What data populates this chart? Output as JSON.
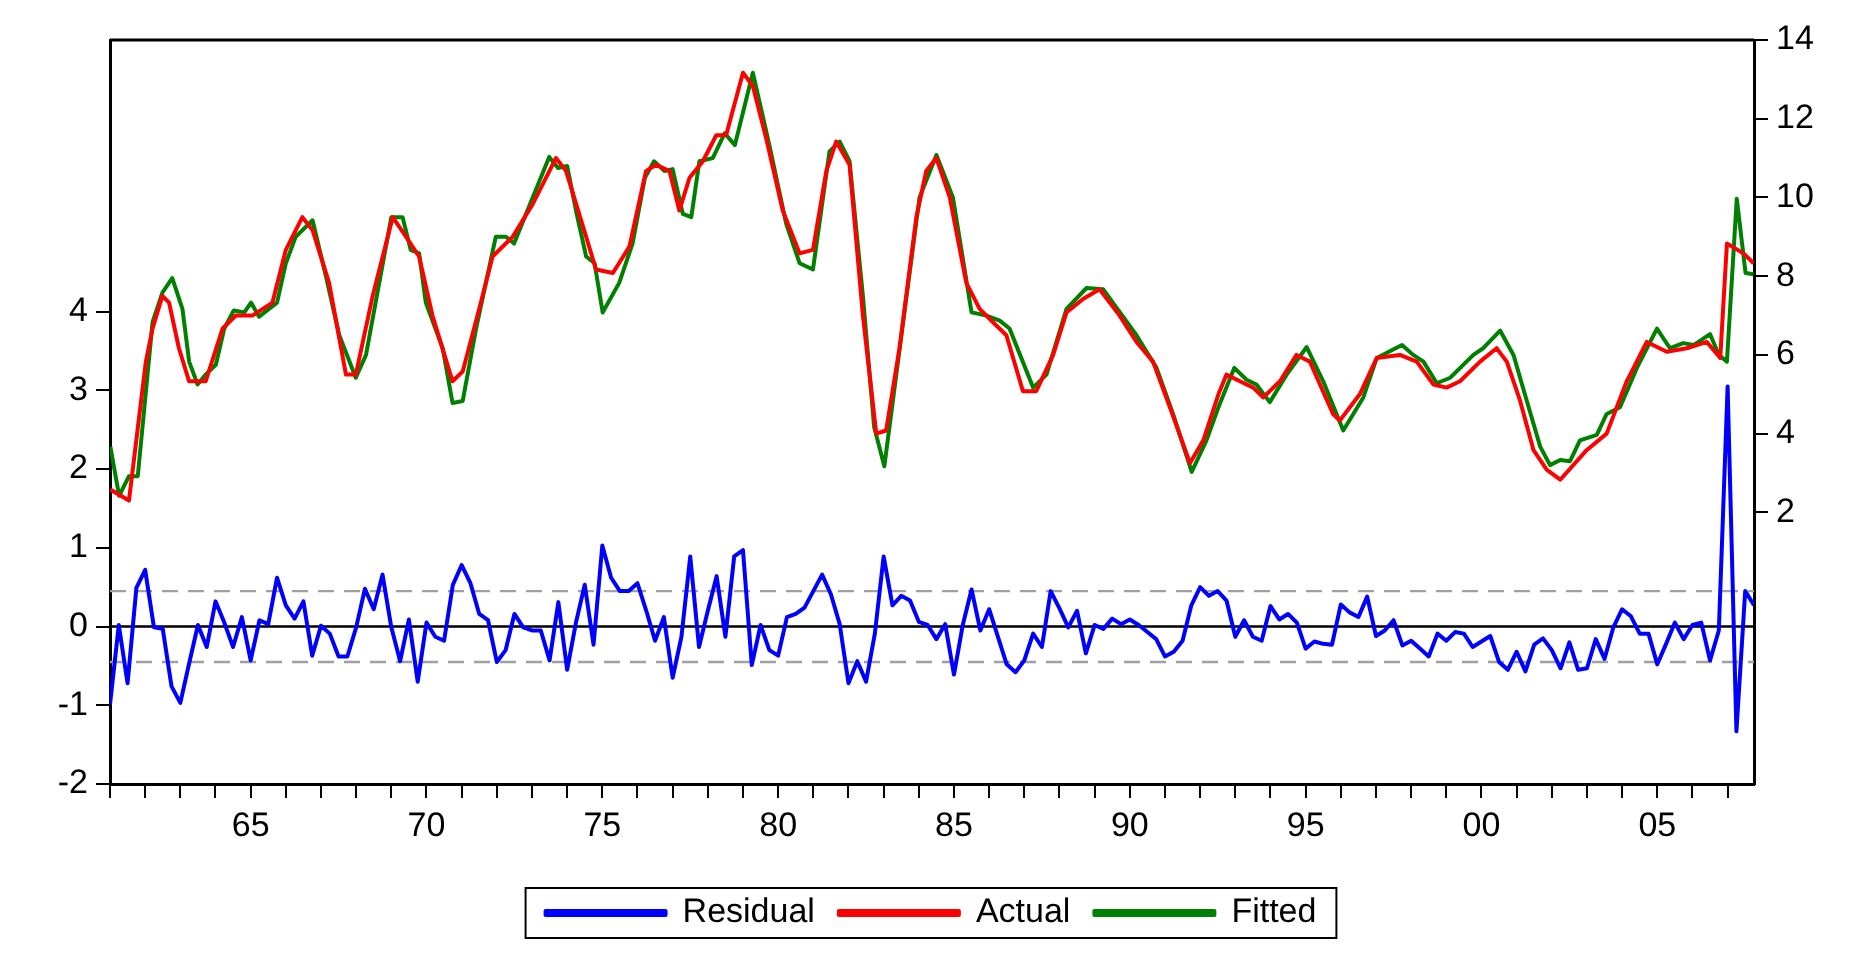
{
  "chart_data": {
    "type": "line",
    "x": [
      1961,
      1961.25,
      1961.5,
      1961.75,
      1962,
      1962.25,
      1962.5,
      1962.75,
      1963,
      1963.25,
      1963.5,
      1963.75,
      1964,
      1964.25,
      1964.5,
      1964.75,
      1965,
      1965.25,
      1965.5,
      1965.75,
      1966,
      1966.25,
      1966.5,
      1966.75,
      1967,
      1967.25,
      1967.5,
      1967.75,
      1968,
      1968.25,
      1968.5,
      1968.75,
      1969,
      1969.25,
      1969.5,
      1969.75,
      1970,
      1970.25,
      1970.5,
      1970.75,
      1971,
      1971.25,
      1971.5,
      1971.75,
      1972,
      1972.25,
      1972.5,
      1972.75,
      1973,
      1973.25,
      1973.5,
      1973.75,
      1974,
      1974.25,
      1974.5,
      1974.75,
      1975,
      1975.25,
      1975.5,
      1975.75,
      1976,
      1976.25,
      1976.5,
      1976.75,
      1977,
      1977.25,
      1977.5,
      1977.75,
      1978,
      1978.25,
      1978.5,
      1978.75,
      1979,
      1979.25,
      1979.5,
      1979.75,
      1980,
      1980.25,
      1980.5,
      1980.75,
      1981,
      1981.25,
      1981.5,
      1981.75,
      1982,
      1982.25,
      1982.5,
      1982.75,
      1983,
      1983.25,
      1983.5,
      1983.75,
      1984,
      1984.25,
      1984.5,
      1984.75,
      1985,
      1985.25,
      1985.5,
      1985.75,
      1986,
      1986.25,
      1986.5,
      1986.75,
      1987,
      1987.25,
      1987.5,
      1987.75,
      1988,
      1988.25,
      1988.5,
      1988.75,
      1989,
      1989.25,
      1989.5,
      1989.75,
      1990,
      1990.25,
      1990.5,
      1990.75,
      1991,
      1991.25,
      1991.5,
      1991.75,
      1992,
      1992.25,
      1992.5,
      1992.75,
      1993,
      1993.25,
      1993.5,
      1993.75,
      1994,
      1994.25,
      1994.5,
      1994.75,
      1995,
      1995.25,
      1995.5,
      1995.75,
      1996,
      1996.25,
      1996.5,
      1996.75,
      1997,
      1997.25,
      1997.5,
      1997.75,
      1998,
      1998.25,
      1998.5,
      1998.75,
      1999,
      1999.25,
      1999.5,
      1999.75,
      2000,
      2000.25,
      2000.5,
      2000.75,
      2001,
      2001.25,
      2001.5,
      2001.75,
      2002,
      2002.25,
      2002.5,
      2002.75,
      2003,
      2003.25,
      2003.5,
      2003.75,
      2004,
      2004.25,
      2004.5,
      2004.75,
      2005,
      2005.25,
      2005.5,
      2005.75,
      2006,
      2006.25,
      2006.5,
      2006.75,
      2007,
      2007.25,
      2007.5,
      2007.75
    ],
    "series": [
      {
        "name": "Residual",
        "color": "#0000ff",
        "values": [
          -0.99,
          0.02,
          -0.72,
          0.49,
          0.72,
          -0.01,
          -0.03,
          -0.76,
          -0.97,
          -0.47,
          0.02,
          -0.26,
          0.32,
          0.05,
          -0.26,
          0.12,
          -0.43,
          0.08,
          0.03,
          0.62,
          0.27,
          0.1,
          0.32,
          -0.37,
          0.01,
          -0.09,
          -0.38,
          -0.38,
          -0.01,
          0.48,
          0.22,
          0.66,
          -0.01,
          -0.44,
          0.09,
          -0.7,
          0.05,
          -0.13,
          -0.18,
          0.53,
          0.78,
          0.55,
          0.16,
          0.08,
          -0.45,
          -0.3,
          0.16,
          -0.01,
          -0.05,
          -0.05,
          -0.43,
          0.31,
          -0.55,
          0.05,
          0.53,
          -0.23,
          1.03,
          0.62,
          0.45,
          0.45,
          0.55,
          0.2,
          -0.18,
          0.12,
          -0.65,
          -0.13,
          0.89,
          -0.26,
          0.2,
          0.64,
          -0.13,
          0.89,
          0.97,
          -0.49,
          0.02,
          -0.3,
          -0.37,
          0.12,
          0.16,
          0.24,
          0.45,
          0.66,
          0.41,
          0.03,
          -0.72,
          -0.44,
          -0.7,
          -0.09,
          0.89,
          0.27,
          0.39,
          0.33,
          0.06,
          0.02,
          -0.16,
          0.03,
          -0.61,
          0.02,
          0.47,
          -0.05,
          0.22,
          -0.13,
          -0.48,
          -0.58,
          -0.43,
          -0.09,
          -0.26,
          0.45,
          0.23,
          -0.01,
          0.2,
          -0.34,
          0.02,
          -0.03,
          0.1,
          0.03,
          0.09,
          0.02,
          -0.07,
          -0.16,
          -0.38,
          -0.32,
          -0.18,
          0.27,
          0.5,
          0.39,
          0.45,
          0.33,
          -0.13,
          0.08,
          -0.13,
          -0.18,
          0.26,
          0.09,
          0.16,
          0.05,
          -0.28,
          -0.19,
          -0.22,
          -0.23,
          0.28,
          0.18,
          0.12,
          0.38,
          -0.12,
          -0.05,
          0.08,
          -0.24,
          -0.18,
          -0.28,
          -0.38,
          -0.09,
          -0.18,
          -0.07,
          -0.09,
          -0.26,
          -0.19,
          -0.12,
          -0.45,
          -0.55,
          -0.32,
          -0.57,
          -0.23,
          -0.15,
          -0.3,
          -0.53,
          -0.2,
          -0.55,
          -0.53,
          -0.16,
          -0.41,
          -0.01,
          0.22,
          0.13,
          -0.09,
          -0.09,
          -0.48,
          -0.22,
          0.05,
          -0.16,
          0.02,
          0.05,
          -0.43,
          -0.05,
          3.05,
          -1.33,
          0.45,
          0.27
        ]
      },
      {
        "name": "Actual",
        "color": "#ff0000",
        "axis": "y2",
        "x": [
          1961.01,
          1961.54,
          1962.02,
          1962.21,
          1962.49,
          1962.68,
          1962.96,
          1963.25,
          1963.72,
          1964.2,
          1964.58,
          1965.05,
          1965.62,
          1966.0,
          1966.47,
          1966.76,
          1967.23,
          1967.71,
          1967.99,
          1968.47,
          1969.04,
          1969.42,
          1969.79,
          1970.17,
          1970.74,
          1971.03,
          1971.5,
          1971.88,
          1972.45,
          1973.02,
          1973.68,
          1973.97,
          1974.54,
          1974.82,
          1975.3,
          1975.77,
          1976.24,
          1976.53,
          1976.91,
          1977.19,
          1977.48,
          1977.86,
          1978.24,
          1978.52,
          1979.0,
          1979.28,
          1979.66,
          1980.13,
          1980.61,
          1980.99,
          1981.37,
          1981.65,
          1982.03,
          1982.41,
          1982.79,
          1983.07,
          1983.45,
          1983.93,
          1984.21,
          1984.5,
          1984.88,
          1985.35,
          1985.73,
          1986.11,
          1986.49,
          1986.96,
          1987.34,
          1987.82,
          1988.2,
          1988.67,
          1989.14,
          1989.71,
          1990.19,
          1990.66,
          1991.14,
          1991.71,
          1992.09,
          1992.52,
          1992.75,
          1993.13,
          1993.51,
          1993.79,
          1994.27,
          1994.74,
          1995.12,
          1995.78,
          1995.97,
          1996.54,
          1997.02,
          1997.68,
          1998.16,
          1998.63,
          1999.01,
          1999.39,
          1999.96,
          2000.43,
          2000.72,
          2001.1,
          2001.48,
          2001.86,
          2002.24,
          2002.99,
          2003.56,
          2004.13,
          2004.7,
          2005.27,
          2005.84,
          2006.41,
          2006.79,
          2006.98,
          2007.45,
          2007.74
        ],
        "values": [
          2.58,
          2.3,
          5.83,
          6.67,
          7.5,
          7.33,
          6.17,
          5.33,
          5.33,
          6.67,
          7.0,
          7.0,
          7.33,
          8.67,
          9.5,
          9.17,
          7.83,
          5.5,
          5.5,
          7.5,
          9.5,
          9.0,
          8.5,
          7.0,
          5.33,
          5.58,
          7.17,
          8.5,
          9.0,
          9.83,
          11.0,
          10.67,
          9.0,
          8.17,
          8.08,
          8.75,
          10.67,
          10.83,
          10.67,
          9.67,
          10.5,
          10.92,
          11.58,
          11.58,
          13.17,
          12.83,
          11.5,
          9.67,
          8.58,
          8.67,
          10.67,
          11.42,
          10.83,
          7.0,
          4.0,
          4.08,
          6.17,
          9.5,
          10.67,
          11.0,
          10.0,
          7.83,
          7.17,
          6.83,
          6.5,
          5.08,
          5.08,
          6.0,
          7.08,
          7.42,
          7.67,
          7.0,
          6.33,
          5.83,
          4.67,
          3.25,
          3.83,
          5.0,
          5.5,
          5.33,
          5.17,
          4.92,
          5.33,
          6.0,
          5.83,
          4.5,
          4.33,
          5.0,
          5.92,
          6.0,
          5.83,
          5.25,
          5.17,
          5.33,
          5.83,
          6.17,
          5.83,
          4.83,
          3.58,
          3.08,
          2.83,
          3.58,
          4.0,
          5.33,
          6.33,
          6.08,
          6.17,
          6.33,
          5.92,
          8.83,
          8.58,
          8.33
        ]
      },
      {
        "name": "Fitted",
        "color": "#008000",
        "axis": "y2",
        "x": [
          1961.01,
          1961.26,
          1961.54,
          1961.79,
          1962.21,
          1962.49,
          1962.77,
          1963.06,
          1963.25,
          1963.49,
          1963.72,
          1964.01,
          1964.25,
          1964.52,
          1964.82,
          1965.01,
          1965.24,
          1965.75,
          1966.0,
          1966.28,
          1966.76,
          1967.14,
          1967.52,
          1967.99,
          1968.28,
          1969.0,
          1969.32,
          1969.55,
          1969.79,
          1969.98,
          1970.46,
          1970.74,
          1971.03,
          1971.41,
          1971.97,
          1972.26,
          1972.49,
          1973.02,
          1973.49,
          1973.74,
          1974.0,
          1974.25,
          1974.54,
          1974.78,
          1975.01,
          1975.48,
          1975.86,
          1976.21,
          1976.47,
          1976.77,
          1977.0,
          1977.29,
          1977.53,
          1977.76,
          1978.14,
          1978.48,
          1978.77,
          1979.28,
          1979.75,
          1980.23,
          1980.61,
          1980.99,
          1981.46,
          1981.75,
          1982.03,
          1982.41,
          1982.73,
          1983.02,
          1983.36,
          1984.02,
          1984.5,
          1984.97,
          1985.5,
          1985.92,
          1986.3,
          1986.58,
          1987.25,
          1987.63,
          1988.2,
          1988.77,
          1989.24,
          1990.19,
          1990.76,
          1991.23,
          1991.76,
          1992.18,
          1992.52,
          1992.97,
          1993.32,
          1993.6,
          1993.98,
          1994.46,
          1995.03,
          1995.5,
          1996.07,
          1996.64,
          1997.02,
          1997.74,
          1998.06,
          1998.35,
          1998.73,
          1999.11,
          1999.77,
          2000.05,
          2000.53,
          2000.91,
          2001.29,
          2001.67,
          2001.95,
          2002.24,
          2002.52,
          2002.8,
          2003.28,
          2003.56,
          2003.94,
          2004.42,
          2004.99,
          2005.36,
          2005.74,
          2006.03,
          2006.5,
          2006.75,
          2006.98,
          2007.26,
          2007.51,
          2007.74
        ],
        "values": [
          3.67,
          2.42,
          2.92,
          2.92,
          6.83,
          7.58,
          7.95,
          7.17,
          5.83,
          5.25,
          5.5,
          5.75,
          6.67,
          7.13,
          7.08,
          7.33,
          6.97,
          7.33,
          8.33,
          9.0,
          9.42,
          8.0,
          6.5,
          5.42,
          6.0,
          9.5,
          9.5,
          8.67,
          8.58,
          7.33,
          6.17,
          4.78,
          4.83,
          6.67,
          9.0,
          9.0,
          8.83,
          10.0,
          11.03,
          10.75,
          10.8,
          9.67,
          8.5,
          8.33,
          7.08,
          7.83,
          8.83,
          10.5,
          10.92,
          10.67,
          10.72,
          9.58,
          9.5,
          10.92,
          11.0,
          11.63,
          11.33,
          13.17,
          11.33,
          9.33,
          8.33,
          8.17,
          11.17,
          11.42,
          10.92,
          7.5,
          4.17,
          3.17,
          5.5,
          10.0,
          11.08,
          10.0,
          7.08,
          7.0,
          6.87,
          6.67,
          5.17,
          5.5,
          7.17,
          7.7,
          7.67,
          6.5,
          5.67,
          4.5,
          3.03,
          3.83,
          4.67,
          5.67,
          5.37,
          5.25,
          4.8,
          5.5,
          6.2,
          5.33,
          4.08,
          4.92,
          5.92,
          6.25,
          6.0,
          5.83,
          5.28,
          5.42,
          6.0,
          6.17,
          6.62,
          6.0,
          4.83,
          3.67,
          3.2,
          3.33,
          3.3,
          3.83,
          3.97,
          4.5,
          4.67,
          5.67,
          6.67,
          6.17,
          6.3,
          6.25,
          6.53,
          6.0,
          5.83,
          9.97,
          8.08,
          8.05
        ]
      }
    ],
    "xlim": [
      1961,
      2007.75
    ],
    "xticks": [
      {
        "value": 1961,
        "label": null
      },
      {
        "value": 1962,
        "label": null
      },
      {
        "value": 1963,
        "label": null
      },
      {
        "value": 1964,
        "label": null
      },
      {
        "value": 1965,
        "label": "65"
      },
      {
        "value": 1966,
        "label": null
      },
      {
        "value": 1967,
        "label": null
      },
      {
        "value": 1968,
        "label": null
      },
      {
        "value": 1969,
        "label": null
      },
      {
        "value": 1970,
        "label": "70"
      },
      {
        "value": 1971,
        "label": null
      },
      {
        "value": 1972,
        "label": null
      },
      {
        "value": 1973,
        "label": null
      },
      {
        "value": 1974,
        "label": null
      },
      {
        "value": 1975,
        "label": "75"
      },
      {
        "value": 1976,
        "label": null
      },
      {
        "value": 1977,
        "label": null
      },
      {
        "value": 1978,
        "label": null
      },
      {
        "value": 1979,
        "label": null
      },
      {
        "value": 1980,
        "label": "80"
      },
      {
        "value": 1981,
        "label": null
      },
      {
        "value": 1982,
        "label": null
      },
      {
        "value": 1983,
        "label": null
      },
      {
        "value": 1984,
        "label": null
      },
      {
        "value": 1985,
        "label": "85"
      },
      {
        "value": 1986,
        "label": null
      },
      {
        "value": 1987,
        "label": null
      },
      {
        "value": 1988,
        "label": null
      },
      {
        "value": 1989,
        "label": null
      },
      {
        "value": 1990,
        "label": "90"
      },
      {
        "value": 1991,
        "label": null
      },
      {
        "value": 1992,
        "label": null
      },
      {
        "value": 1993,
        "label": null
      },
      {
        "value": 1994,
        "label": null
      },
      {
        "value": 1995,
        "label": "95"
      },
      {
        "value": 1996,
        "label": null
      },
      {
        "value": 1997,
        "label": null
      },
      {
        "value": 1998,
        "label": null
      },
      {
        "value": 1999,
        "label": null
      },
      {
        "value": 2000,
        "label": "00"
      },
      {
        "value": 2001,
        "label": null
      },
      {
        "value": 2002,
        "label": null
      },
      {
        "value": 2003,
        "label": null
      },
      {
        "value": 2004,
        "label": null
      },
      {
        "value": 2005,
        "label": "05"
      },
      {
        "value": 2006,
        "label": null
      },
      {
        "value": 2007,
        "label": null
      }
    ],
    "ylim": [
      -2,
      7.45
    ],
    "yticks": [
      -2,
      -1,
      0,
      1,
      2,
      3,
      4
    ],
    "y2lim": [
      -4.9,
      14
    ],
    "y2ticks": [
      2,
      4,
      6,
      8,
      10,
      12,
      14
    ],
    "ref_lines": [
      {
        "axis": "y",
        "value": 0,
        "color": "#000000",
        "line_style": "solid"
      },
      {
        "axis": "y",
        "value": 0.45,
        "color": "#a0a0a0",
        "line_style": "dashed"
      },
      {
        "axis": "y",
        "value": -0.45,
        "color": "#a0a0a0",
        "line_style": "dashed"
      }
    ],
    "grid": false,
    "legend": "bottom",
    "line_style": "solid"
  }
}
